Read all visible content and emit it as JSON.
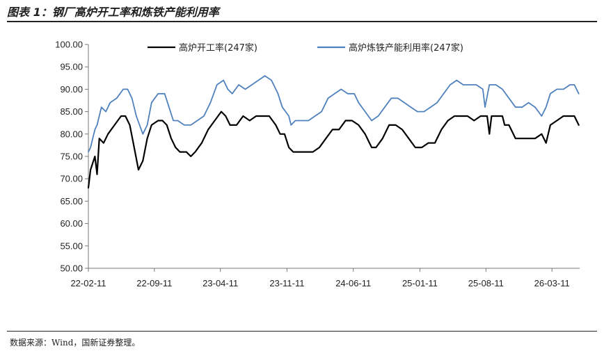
{
  "header": {
    "title": "图表 1：钢厂高炉开工率和炼铁产能利用率"
  },
  "footer": {
    "source": "数据来源：Wind，国新证券整理。"
  },
  "chart_data": {
    "type": "line",
    "ylim": [
      50,
      100
    ],
    "yticks": [
      "50.00",
      "55.00",
      "60.00",
      "65.00",
      "70.00",
      "75.00",
      "80.00",
      "85.00",
      "90.00",
      "95.00",
      "100.00"
    ],
    "xticks": [
      "22-02-11",
      "22-09-11",
      "23-04-11",
      "23-11-11",
      "24-06-11",
      "25-01-11",
      "25-08-11",
      "26-03-11"
    ],
    "legend_position": "top",
    "series": [
      {
        "name": "高炉开工率(247家)",
        "color": "#000000",
        "points": [
          [
            "2022-02-11",
            68
          ],
          [
            "2022-02-18",
            72
          ],
          [
            "2022-03-04",
            75
          ],
          [
            "2022-03-11",
            71
          ],
          [
            "2022-03-18",
            79
          ],
          [
            "2022-04-01",
            78
          ],
          [
            "2022-04-15",
            80
          ],
          [
            "2022-05-06",
            82
          ],
          [
            "2022-05-27",
            84
          ],
          [
            "2022-06-10",
            84
          ],
          [
            "2022-06-24",
            82
          ],
          [
            "2022-07-08",
            77
          ],
          [
            "2022-07-22",
            72
          ],
          [
            "2022-08-05",
            74
          ],
          [
            "2022-08-19",
            79
          ],
          [
            "2022-09-02",
            82
          ],
          [
            "2022-09-23",
            83
          ],
          [
            "2022-10-07",
            83
          ],
          [
            "2022-10-21",
            82
          ],
          [
            "2022-11-04",
            79
          ],
          [
            "2022-11-18",
            77
          ],
          [
            "2022-12-02",
            76
          ],
          [
            "2022-12-23",
            76
          ],
          [
            "2023-01-06",
            75
          ],
          [
            "2023-01-20",
            76
          ],
          [
            "2023-02-10",
            78
          ],
          [
            "2023-03-03",
            81
          ],
          [
            "2023-03-24",
            83
          ],
          [
            "2023-04-14",
            85
          ],
          [
            "2023-04-28",
            84
          ],
          [
            "2023-05-12",
            82
          ],
          [
            "2023-06-02",
            82
          ],
          [
            "2023-06-23",
            84
          ],
          [
            "2023-07-14",
            83
          ],
          [
            "2023-08-04",
            84
          ],
          [
            "2023-08-25",
            84
          ],
          [
            "2023-09-15",
            84
          ],
          [
            "2023-10-06",
            82
          ],
          [
            "2023-10-20",
            80
          ],
          [
            "2023-11-03",
            80
          ],
          [
            "2023-11-17",
            77
          ],
          [
            "2023-12-01",
            76
          ],
          [
            "2023-12-22",
            76
          ],
          [
            "2024-01-12",
            76
          ],
          [
            "2024-02-02",
            76
          ],
          [
            "2024-02-23",
            77
          ],
          [
            "2024-03-15",
            79
          ],
          [
            "2024-04-05",
            81
          ],
          [
            "2024-04-26",
            81
          ],
          [
            "2024-05-17",
            83
          ],
          [
            "2024-06-07",
            83
          ],
          [
            "2024-06-28",
            82
          ],
          [
            "2024-07-19",
            80
          ],
          [
            "2024-08-09",
            77
          ],
          [
            "2024-08-23",
            77
          ],
          [
            "2024-09-13",
            79
          ],
          [
            "2024-10-04",
            82
          ],
          [
            "2024-10-25",
            82
          ],
          [
            "2024-11-15",
            81
          ],
          [
            "2024-12-06",
            79
          ],
          [
            "2024-12-27",
            77
          ],
          [
            "2025-01-17",
            77
          ],
          [
            "2025-02-07",
            78
          ],
          [
            "2025-02-28",
            78
          ],
          [
            "2025-03-21",
            81
          ],
          [
            "2025-04-11",
            83
          ],
          [
            "2025-05-02",
            84
          ],
          [
            "2025-05-23",
            84
          ],
          [
            "2025-06-13",
            84
          ],
          [
            "2025-07-04",
            83
          ],
          [
            "2025-07-25",
            84
          ],
          [
            "2025-08-15",
            84
          ],
          [
            "2025-08-22",
            80
          ],
          [
            "2025-08-29",
            84
          ],
          [
            "2025-09-19",
            84
          ],
          [
            "2025-10-03",
            84
          ],
          [
            "2025-10-10",
            82
          ],
          [
            "2025-10-24",
            82
          ],
          [
            "2025-11-14",
            79
          ],
          [
            "2025-12-05",
            79
          ],
          [
            "2025-12-26",
            79
          ],
          [
            "2026-01-16",
            79
          ],
          [
            "2026-02-06",
            80
          ],
          [
            "2026-02-20",
            78
          ],
          [
            "2026-03-06",
            82
          ],
          [
            "2026-03-27",
            83
          ],
          [
            "2026-04-17",
            84
          ],
          [
            "2026-05-08",
            84
          ],
          [
            "2026-05-22",
            84
          ],
          [
            "2026-06-05",
            82
          ]
        ]
      },
      {
        "name": "高炉炼铁产能利用率(247家)",
        "color": "#4f81bd",
        "points": [
          [
            "2022-02-11",
            76
          ],
          [
            "2022-02-18",
            77
          ],
          [
            "2022-03-04",
            81
          ],
          [
            "2022-03-11",
            82
          ],
          [
            "2022-03-25",
            86
          ],
          [
            "2022-04-08",
            85
          ],
          [
            "2022-04-22",
            87
          ],
          [
            "2022-05-13",
            88
          ],
          [
            "2022-06-03",
            90
          ],
          [
            "2022-06-17",
            90
          ],
          [
            "2022-07-01",
            88
          ],
          [
            "2022-07-15",
            84
          ],
          [
            "2022-08-05",
            80
          ],
          [
            "2022-08-19",
            82
          ],
          [
            "2022-09-02",
            87
          ],
          [
            "2022-09-23",
            89
          ],
          [
            "2022-10-14",
            89
          ],
          [
            "2022-10-28",
            86
          ],
          [
            "2022-11-11",
            83
          ],
          [
            "2022-11-25",
            83
          ],
          [
            "2022-12-16",
            82
          ],
          [
            "2023-01-06",
            82
          ],
          [
            "2023-01-27",
            83
          ],
          [
            "2023-02-17",
            84
          ],
          [
            "2023-03-10",
            87
          ],
          [
            "2023-03-31",
            91
          ],
          [
            "2023-04-21",
            92
          ],
          [
            "2023-05-05",
            90
          ],
          [
            "2023-05-19",
            89
          ],
          [
            "2023-06-09",
            91
          ],
          [
            "2023-06-30",
            90
          ],
          [
            "2023-07-21",
            91
          ],
          [
            "2023-08-11",
            92
          ],
          [
            "2023-09-01",
            93
          ],
          [
            "2023-09-22",
            92
          ],
          [
            "2023-10-13",
            89
          ],
          [
            "2023-10-27",
            86
          ],
          [
            "2023-11-17",
            84
          ],
          [
            "2023-11-24",
            82
          ],
          [
            "2023-12-08",
            83
          ],
          [
            "2023-12-29",
            83
          ],
          [
            "2024-01-19",
            83
          ],
          [
            "2024-02-09",
            84
          ],
          [
            "2024-03-01",
            85
          ],
          [
            "2024-03-22",
            88
          ],
          [
            "2024-04-12",
            89
          ],
          [
            "2024-05-03",
            90
          ],
          [
            "2024-05-24",
            89
          ],
          [
            "2024-06-14",
            89
          ],
          [
            "2024-06-28",
            87
          ],
          [
            "2024-07-19",
            85
          ],
          [
            "2024-08-09",
            83
          ],
          [
            "2024-08-30",
            84
          ],
          [
            "2024-09-20",
            86
          ],
          [
            "2024-10-11",
            88
          ],
          [
            "2024-11-01",
            88
          ],
          [
            "2024-11-22",
            87
          ],
          [
            "2024-12-13",
            86
          ],
          [
            "2025-01-03",
            85
          ],
          [
            "2025-01-24",
            85
          ],
          [
            "2025-02-14",
            86
          ],
          [
            "2025-03-07",
            87
          ],
          [
            "2025-03-28",
            89
          ],
          [
            "2025-04-18",
            91
          ],
          [
            "2025-05-09",
            92
          ],
          [
            "2025-05-30",
            91
          ],
          [
            "2025-06-20",
            91
          ],
          [
            "2025-07-11",
            91
          ],
          [
            "2025-08-01",
            90
          ],
          [
            "2025-08-08",
            86
          ],
          [
            "2025-08-22",
            91
          ],
          [
            "2025-09-12",
            91
          ],
          [
            "2025-10-03",
            90
          ],
          [
            "2025-10-24",
            88
          ],
          [
            "2025-11-14",
            86
          ],
          [
            "2025-12-05",
            86
          ],
          [
            "2025-12-26",
            87
          ],
          [
            "2026-01-16",
            86
          ],
          [
            "2026-02-06",
            84
          ],
          [
            "2026-02-20",
            86
          ],
          [
            "2026-03-06",
            89
          ],
          [
            "2026-03-27",
            90
          ],
          [
            "2026-04-17",
            90
          ],
          [
            "2026-05-08",
            91
          ],
          [
            "2026-05-22",
            91
          ],
          [
            "2026-06-05",
            89
          ]
        ]
      }
    ]
  }
}
